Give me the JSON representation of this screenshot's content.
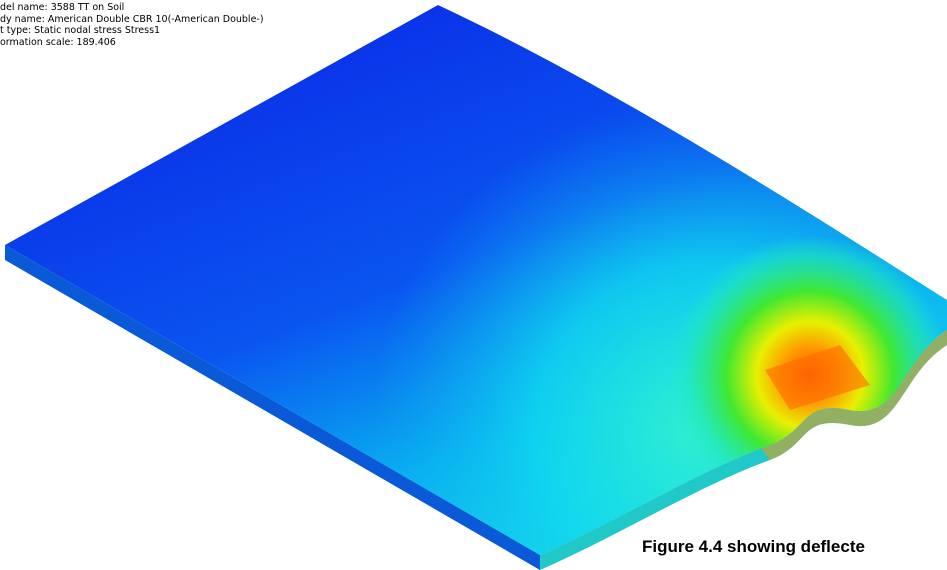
{
  "info_lines": [
    "del name: 3588 TT on Soil",
    "dy name: American Double CBR 10(-American Double-)",
    "t type: Static nodal stress Stress1",
    "ormation scale: 189.406"
  ],
  "caption": "Figure 4.4 showing deflecte"
}
